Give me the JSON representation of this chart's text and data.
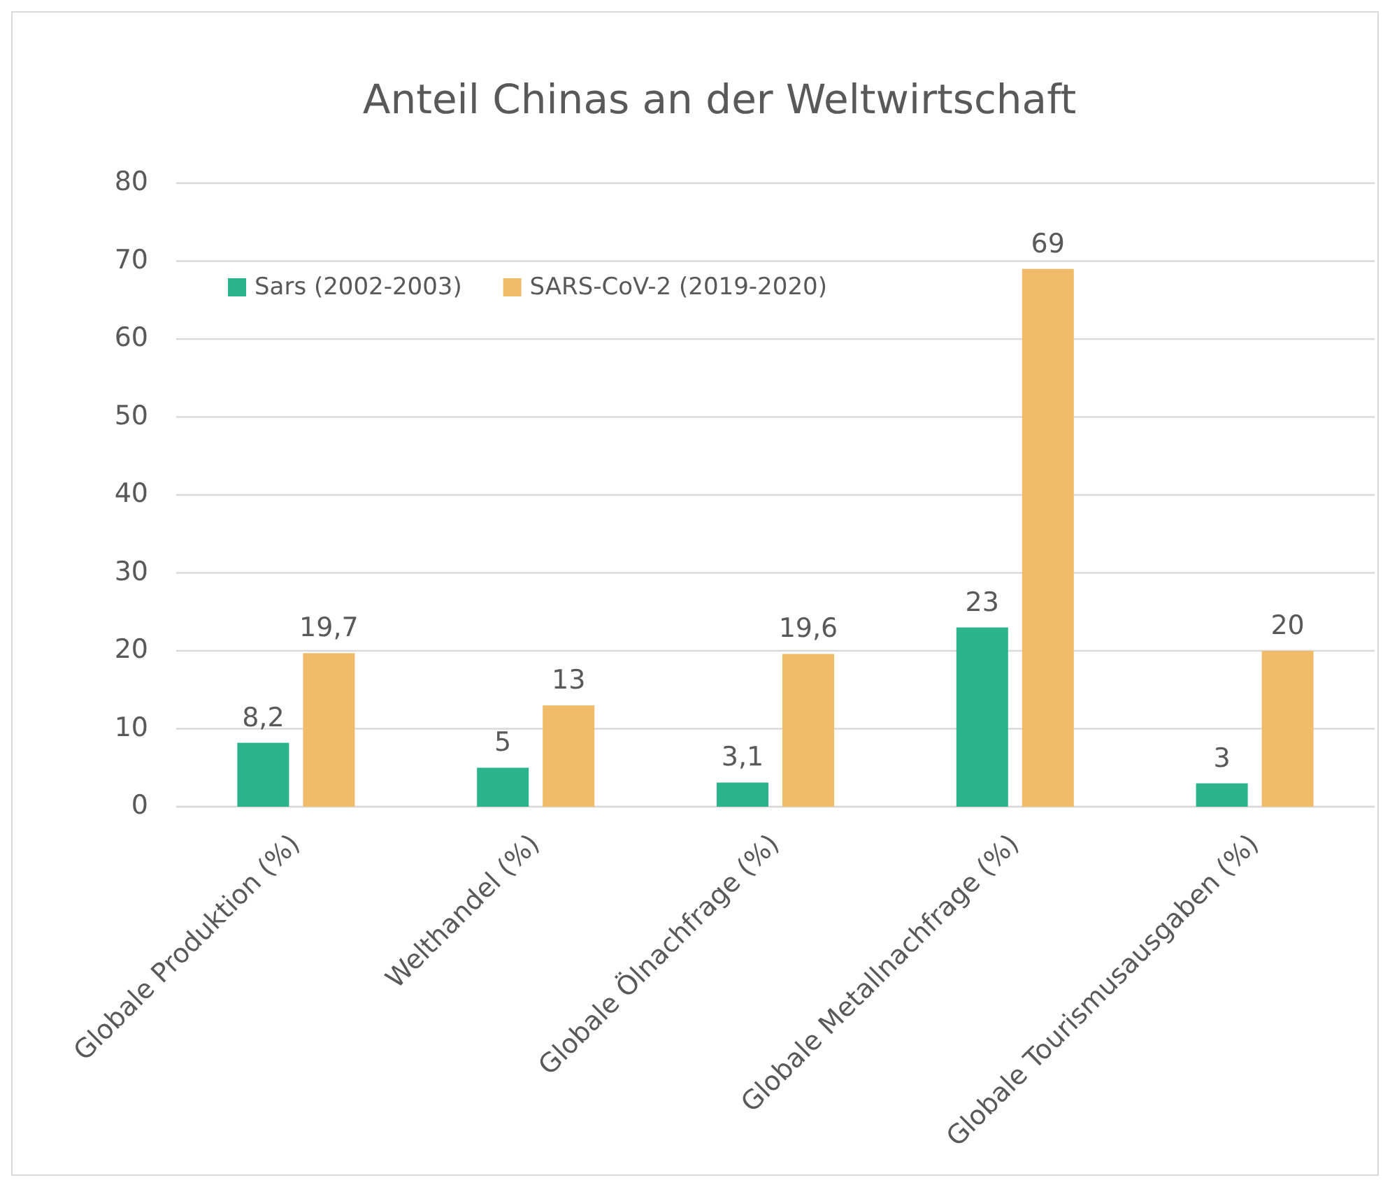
{
  "chart_data": {
    "type": "bar",
    "title": "Anteil Chinas an der Weltwirtschaft",
    "categories": [
      "Globale Produktion (%)",
      "Welthandel (%)",
      "Globale Ölnachfrage (%)",
      "Globale Metallnachfrage (%)",
      "Globale Tourismusausgaben (%)"
    ],
    "series": [
      {
        "name": "Sars (2002-2003)",
        "color": "#2bb48c",
        "values": [
          8.2,
          5,
          3.1,
          23,
          3
        ],
        "value_labels": [
          "8,2",
          "5",
          "3,1",
          "23",
          "3"
        ]
      },
      {
        "name": "SARS-CoV-2 (2019-2020)",
        "color": "#f0bc69",
        "values": [
          19.7,
          13,
          19.6,
          69,
          20
        ],
        "value_labels": [
          "19,7",
          "13",
          "19,6",
          "69",
          "20"
        ]
      }
    ],
    "ylim": [
      0,
      80
    ],
    "yticks": [
      0,
      10,
      20,
      30,
      40,
      50,
      60,
      70,
      80
    ],
    "grid": "y",
    "legend": "top left"
  }
}
